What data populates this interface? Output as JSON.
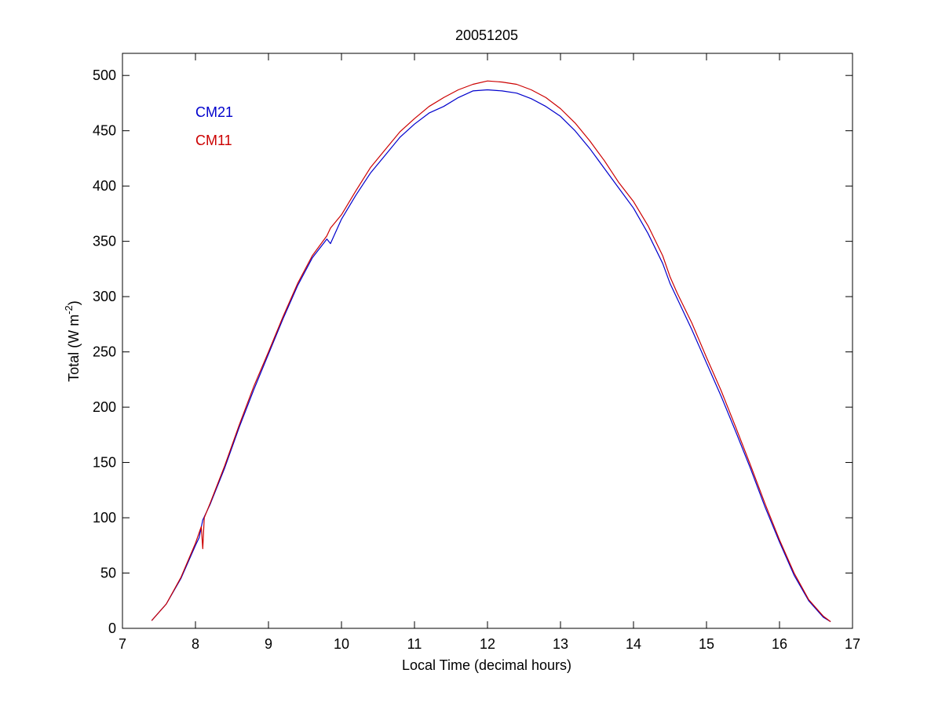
{
  "chart_data": {
    "type": "line",
    "title": "20051205",
    "xlabel": "Local Time (decimal hours)",
    "ylabel_main": "Total (W m",
    "ylabel_sup": "-2",
    "ylabel_close": ")",
    "xlim": [
      7,
      17
    ],
    "ylim": [
      0,
      520
    ],
    "xticks": [
      7,
      8,
      9,
      10,
      11,
      12,
      13,
      14,
      15,
      16,
      17
    ],
    "yticks": [
      0,
      50,
      100,
      150,
      200,
      250,
      300,
      350,
      400,
      450,
      500
    ],
    "grid": false,
    "legend_position": "top-left",
    "series": [
      {
        "name": "CM21",
        "color": "#0000cc",
        "x": [
          7.4,
          7.6,
          7.8,
          8.0,
          8.05,
          8.1,
          8.2,
          8.4,
          8.6,
          8.8,
          9.0,
          9.2,
          9.4,
          9.6,
          9.8,
          9.85,
          10.0,
          10.2,
          10.4,
          10.6,
          10.8,
          11.0,
          11.2,
          11.4,
          11.6,
          11.8,
          12.0,
          12.2,
          12.4,
          12.6,
          12.8,
          13.0,
          13.2,
          13.4,
          13.6,
          13.8,
          14.0,
          14.2,
          14.4,
          14.5,
          14.6,
          14.8,
          15.0,
          15.2,
          15.4,
          15.6,
          15.8,
          16.0,
          16.2,
          16.4,
          16.6,
          16.7
        ],
        "y": [
          7,
          22,
          45,
          75,
          82,
          98,
          112,
          145,
          182,
          216,
          248,
          280,
          310,
          335,
          352,
          348,
          370,
          392,
          412,
          428,
          444,
          456,
          466,
          472,
          480,
          486,
          487,
          486,
          484,
          479,
          472,
          463,
          450,
          434,
          416,
          398,
          380,
          357,
          330,
          312,
          298,
          270,
          240,
          210,
          178,
          145,
          110,
          78,
          48,
          25,
          10,
          6
        ]
      },
      {
        "name": "CM11",
        "color": "#cc0000",
        "x": [
          7.4,
          7.6,
          7.8,
          8.0,
          8.08,
          8.1,
          8.12,
          8.2,
          8.4,
          8.6,
          8.8,
          9.0,
          9.2,
          9.4,
          9.6,
          9.8,
          9.85,
          10.0,
          10.2,
          10.4,
          10.6,
          10.8,
          11.0,
          11.2,
          11.4,
          11.6,
          11.8,
          12.0,
          12.2,
          12.4,
          12.6,
          12.8,
          13.0,
          13.2,
          13.4,
          13.6,
          13.8,
          14.0,
          14.2,
          14.4,
          14.5,
          14.6,
          14.8,
          15.0,
          15.2,
          15.4,
          15.6,
          15.8,
          16.0,
          16.2,
          16.4,
          16.6,
          16.7
        ],
        "y": [
          7,
          22,
          46,
          77,
          92,
          72,
          100,
          113,
          147,
          184,
          219,
          250,
          282,
          312,
          337,
          355,
          362,
          374,
          396,
          417,
          433,
          449,
          461,
          472,
          480,
          487,
          492,
          495,
          494,
          492,
          487,
          480,
          470,
          457,
          441,
          423,
          403,
          386,
          364,
          337,
          318,
          303,
          276,
          245,
          215,
          182,
          148,
          113,
          80,
          50,
          26,
          11,
          6
        ]
      }
    ]
  }
}
